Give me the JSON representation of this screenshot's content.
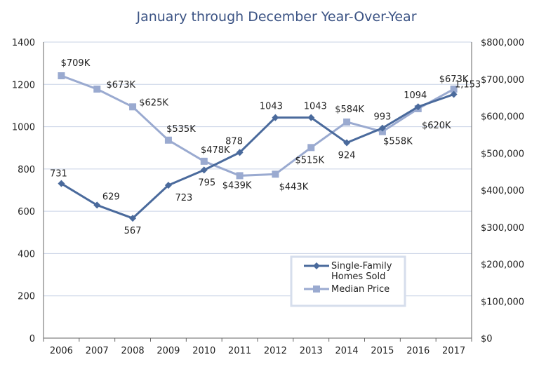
{
  "chart_data": {
    "type": "line",
    "title": "January through December Year-Over-Year",
    "categories": [
      "2006",
      "2007",
      "2008",
      "2009",
      "2010",
      "2011",
      "2012",
      "2013",
      "2014",
      "2015",
      "2016",
      "2017"
    ],
    "y_left": {
      "ylim": [
        0,
        1400
      ],
      "ticks": [
        "0",
        "200",
        "400",
        "600",
        "800",
        "1000",
        "1200",
        "1400"
      ]
    },
    "y_right": {
      "ylim": [
        0,
        800000
      ],
      "ticks": [
        "$0",
        "$100,000",
        "$200,000",
        "$300,000",
        "$400,000",
        "$500,000",
        "$600,000",
        "$700,000",
        "$800,000"
      ]
    },
    "grid": true,
    "legend_position": "bottom-right",
    "series": [
      {
        "name": "Single-Family Homes Sold",
        "legend_lines": [
          "Single-Family",
          "Homes Sold"
        ],
        "axis": "left",
        "marker": "diamond",
        "color": "#4a6a9c",
        "values": [
          731,
          629,
          567,
          723,
          795,
          878,
          1043,
          1043,
          924,
          993,
          1094,
          1153
        ],
        "labels": [
          "731",
          "629",
          "567",
          "723",
          "795",
          "878",
          "1043",
          "1043",
          "924",
          "993",
          "1094",
          "1,153"
        ]
      },
      {
        "name": "Median Price",
        "axis": "right",
        "marker": "square",
        "color": "#9aaad0",
        "values": [
          709000,
          673000,
          625000,
          535000,
          478000,
          439000,
          443000,
          515000,
          584000,
          558000,
          620000,
          673000
        ],
        "labels": [
          "$709K",
          "$673K",
          "$625K",
          "$535K",
          "$478K",
          "$439K",
          "$443K",
          "$515K",
          "$584K",
          "$558K",
          "$620K",
          "$673K"
        ]
      }
    ]
  }
}
